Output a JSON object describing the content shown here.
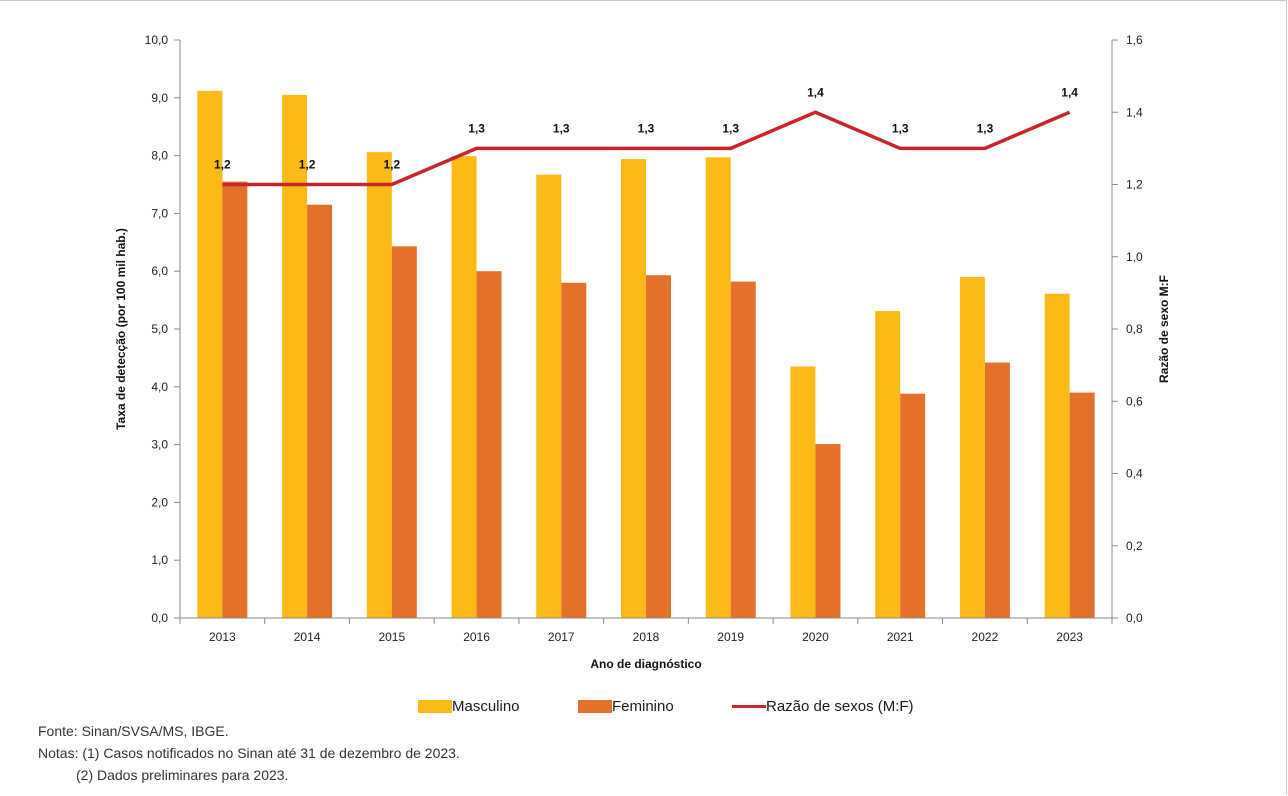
{
  "chart_data": {
    "type": "bar",
    "categories": [
      "2013",
      "2014",
      "2015",
      "2016",
      "2017",
      "2018",
      "2019",
      "2020",
      "2021",
      "2022",
      "2023"
    ],
    "series": [
      {
        "name": "Masculino",
        "type": "bar",
        "axis": "left",
        "color": "#FBBA16",
        "values": [
          9.12,
          9.05,
          8.06,
          7.99,
          7.67,
          7.94,
          7.97,
          4.35,
          5.31,
          5.9,
          5.61
        ]
      },
      {
        "name": "Feminino",
        "type": "bar",
        "axis": "left",
        "color": "#E5702A",
        "values": [
          7.55,
          7.15,
          6.43,
          6.0,
          5.8,
          5.93,
          5.82,
          3.01,
          3.88,
          4.42,
          3.9
        ]
      },
      {
        "name": "Razão de sexos (M:F)",
        "type": "line",
        "axis": "right",
        "color": "#C8262A",
        "values": [
          1.2,
          1.2,
          1.2,
          1.3,
          1.3,
          1.3,
          1.3,
          1.4,
          1.3,
          1.3,
          1.4
        ],
        "labels": [
          "1,2",
          "1,2",
          "1,2",
          "1,3",
          "1,3",
          "1,3",
          "1,3",
          "1,4",
          "1,3",
          "1,3",
          "1,4"
        ]
      }
    ],
    "xlabel": "Ano de diagnóstico",
    "ylabel": "Taxa de detecção (por 100 mil hab.)",
    "y2label": "Razão de sexo M:F",
    "ylim": [
      0,
      10
    ],
    "y2lim": [
      0,
      1.6
    ],
    "yticks": [
      "0,0",
      "1,0",
      "2,0",
      "3,0",
      "4,0",
      "5,0",
      "6,0",
      "7,0",
      "8,0",
      "9,0",
      "10,0"
    ],
    "y2ticks": [
      "0,0",
      "0,2",
      "0,4",
      "0,6",
      "0,8",
      "1,0",
      "1,2",
      "1,4",
      "1,6"
    ],
    "grid": false,
    "legend_position": "bottom"
  },
  "legend": {
    "masculino": "Masculino",
    "feminino": "Feminino",
    "razao": "Razão de sexos (M:F)"
  },
  "notes": {
    "fonte": "Fonte: Sinan/SVSA/MS, IBGE.",
    "nota1": "Notas: (1) Casos notificados no Sinan até 31 de dezembro de 2023.",
    "nota2": "(2) Dados preliminares para 2023."
  }
}
